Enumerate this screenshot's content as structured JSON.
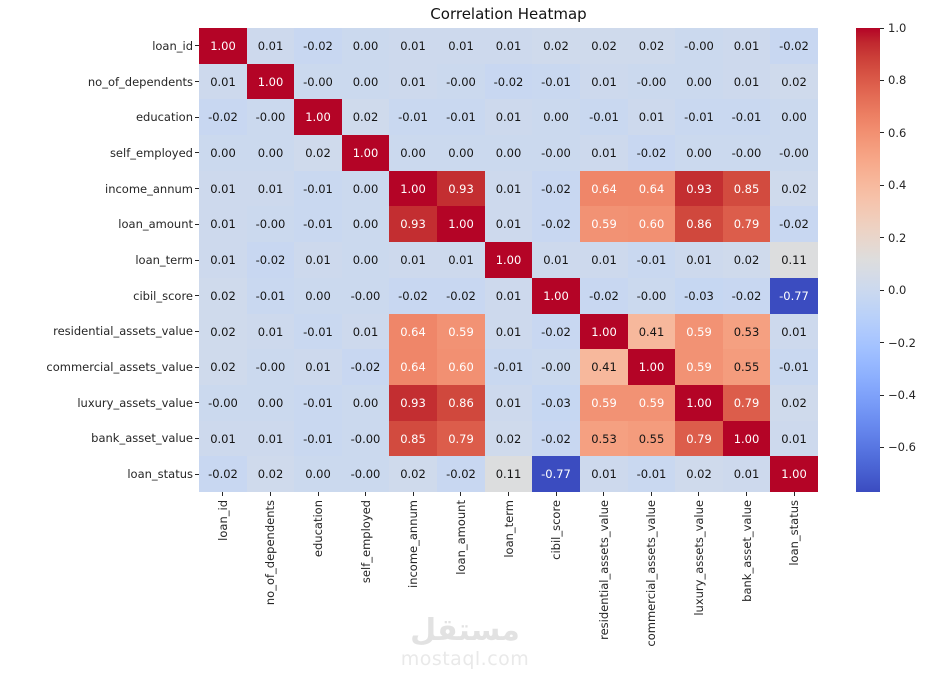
{
  "page_title": "Correlation Heatmap",
  "chart_data": {
    "type": "heatmap",
    "title": "Correlation Heatmap",
    "labels": [
      "loan_id",
      "no_of_dependents",
      "education",
      "self_employed",
      "income_annum",
      "loan_amount",
      "loan_term",
      "cibil_score",
      "residential_assets_value",
      "commercial_assets_value",
      "luxury_assets_value",
      "bank_asset_value",
      "loan_status"
    ],
    "matrix": [
      [
        "1.00",
        "0.01",
        "-0.02",
        "0.00",
        "0.01",
        "0.01",
        "0.01",
        "0.02",
        "0.02",
        "0.02",
        "-0.00",
        "0.01",
        "-0.02"
      ],
      [
        "0.01",
        "1.00",
        "-0.00",
        "0.00",
        "0.01",
        "-0.00",
        "-0.02",
        "-0.01",
        "0.01",
        "-0.00",
        "0.00",
        "0.01",
        "0.02"
      ],
      [
        "-0.02",
        "-0.00",
        "1.00",
        "0.02",
        "-0.01",
        "-0.01",
        "0.01",
        "0.00",
        "-0.01",
        "0.01",
        "-0.01",
        "-0.01",
        "0.00"
      ],
      [
        "0.00",
        "0.00",
        "0.02",
        "1.00",
        "0.00",
        "0.00",
        "0.00",
        "-0.00",
        "0.01",
        "-0.02",
        "0.00",
        "-0.00",
        "-0.00"
      ],
      [
        "0.01",
        "0.01",
        "-0.01",
        "0.00",
        "1.00",
        "0.93",
        "0.01",
        "-0.02",
        "0.64",
        "0.64",
        "0.93",
        "0.85",
        "0.02"
      ],
      [
        "0.01",
        "-0.00",
        "-0.01",
        "0.00",
        "0.93",
        "1.00",
        "0.01",
        "-0.02",
        "0.59",
        "0.60",
        "0.86",
        "0.79",
        "-0.02"
      ],
      [
        "0.01",
        "-0.02",
        "0.01",
        "0.00",
        "0.01",
        "0.01",
        "1.00",
        "0.01",
        "0.01",
        "-0.01",
        "0.01",
        "0.02",
        "0.11"
      ],
      [
        "0.02",
        "-0.01",
        "0.00",
        "-0.00",
        "-0.02",
        "-0.02",
        "0.01",
        "1.00",
        "-0.02",
        "-0.00",
        "-0.03",
        "-0.02",
        "-0.77"
      ],
      [
        "0.02",
        "0.01",
        "-0.01",
        "0.01",
        "0.64",
        "0.59",
        "0.01",
        "-0.02",
        "1.00",
        "0.41",
        "0.59",
        "0.53",
        "0.01"
      ],
      [
        "0.02",
        "-0.00",
        "0.01",
        "-0.02",
        "0.64",
        "0.60",
        "-0.01",
        "-0.00",
        "0.41",
        "1.00",
        "0.59",
        "0.55",
        "-0.01"
      ],
      [
        "-0.00",
        "0.00",
        "-0.01",
        "0.00",
        "0.93",
        "0.86",
        "0.01",
        "-0.03",
        "0.59",
        "0.59",
        "1.00",
        "0.79",
        "0.02"
      ],
      [
        "0.01",
        "0.01",
        "-0.01",
        "-0.00",
        "0.85",
        "0.79",
        "0.02",
        "-0.02",
        "0.53",
        "0.55",
        "0.79",
        "1.00",
        "0.01"
      ],
      [
        "-0.02",
        "0.02",
        "0.00",
        "-0.00",
        "0.02",
        "-0.02",
        "0.11",
        "-0.77",
        "0.01",
        "-0.01",
        "0.02",
        "0.01",
        "1.00"
      ]
    ],
    "colormap": "coolwarm",
    "vmin": -0.77,
    "vmax": 1.0,
    "colorbar_ticks": [
      {
        "v": 1.0,
        "label": "1.0"
      },
      {
        "v": 0.8,
        "label": "0.8"
      },
      {
        "v": 0.6,
        "label": "0.6"
      },
      {
        "v": 0.4,
        "label": "0.4"
      },
      {
        "v": 0.2,
        "label": "0.2"
      },
      {
        "v": 0.0,
        "label": "0.0"
      },
      {
        "v": -0.2,
        "label": "−0.2"
      },
      {
        "v": -0.4,
        "label": "−0.4"
      },
      {
        "v": -0.6,
        "label": "−0.6"
      }
    ],
    "colors": {
      "min": "#3b4cc0",
      "mid": "#dcdcdc",
      "max": "#b40426"
    },
    "legend_position": "right",
    "grid": false
  },
  "watermark": {
    "line1": "مستقل",
    "line2": "mostaql.com"
  }
}
